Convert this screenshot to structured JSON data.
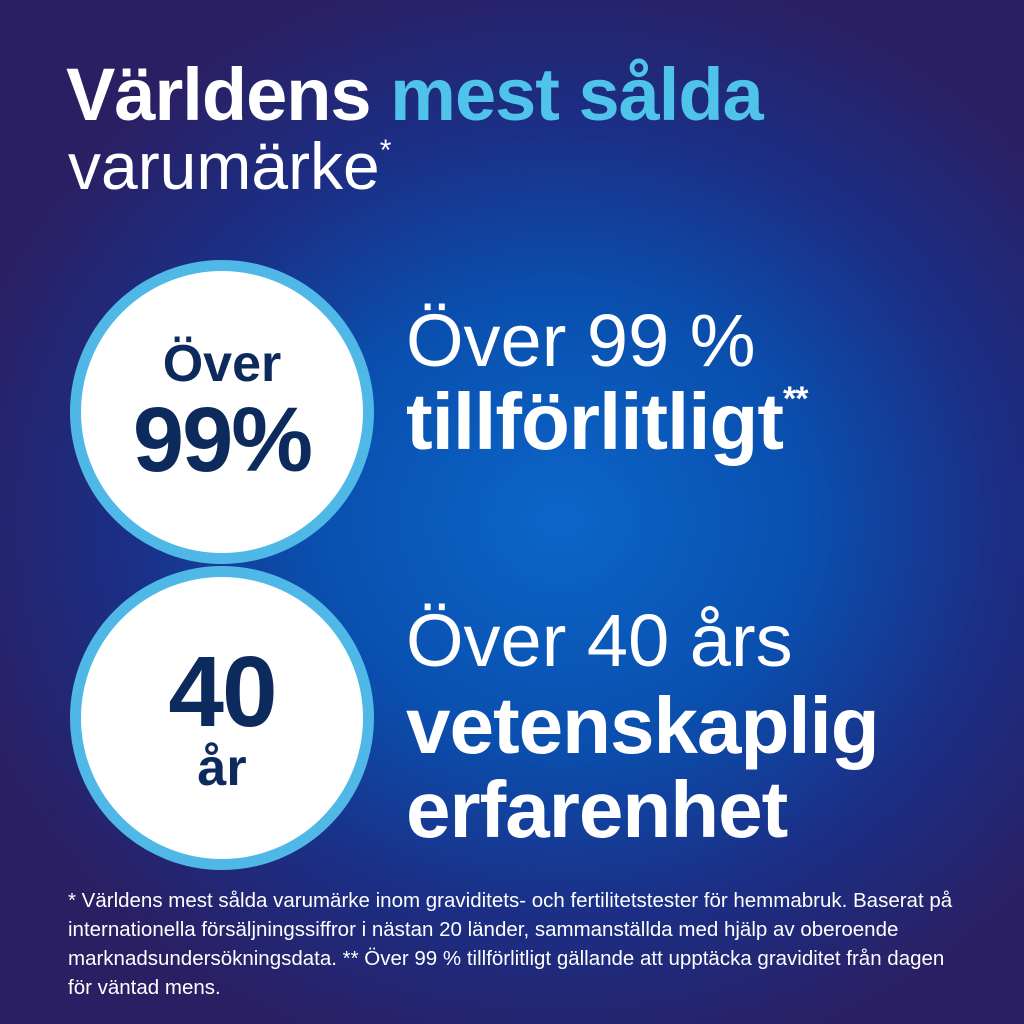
{
  "headline": {
    "part1": "Världens",
    "part2": "mest sålda",
    "line2": "varumärke",
    "line2_mark": "*"
  },
  "badges": [
    {
      "top": "Över",
      "main": "99%"
    },
    {
      "main": "40",
      "bottom": "år"
    }
  ],
  "claims": [
    {
      "light": "Över 99 %",
      "bold": "tillförlitligt",
      "mark": "**"
    },
    {
      "light": "Över 40 års",
      "bold1": "vetenskaplig",
      "bold2": "erfarenhet"
    }
  ],
  "footnote": "* Världens mest sålda varumärke inom graviditets- och fertilitetstester för hemmabruk. Baserat på internationella försäljningssiffror i nästan 20 länder, sammanställda med hjälp av oberoende marknadsundersökningsdata. ** Över 99 % tillförlitligt gällande att upptäcka graviditet från dagen för väntad mens.",
  "colors": {
    "accent": "#4fc3ea",
    "badge_ring": "#4fb8e6",
    "badge_text": "#0d2a5c",
    "background": "#0b66c8"
  }
}
